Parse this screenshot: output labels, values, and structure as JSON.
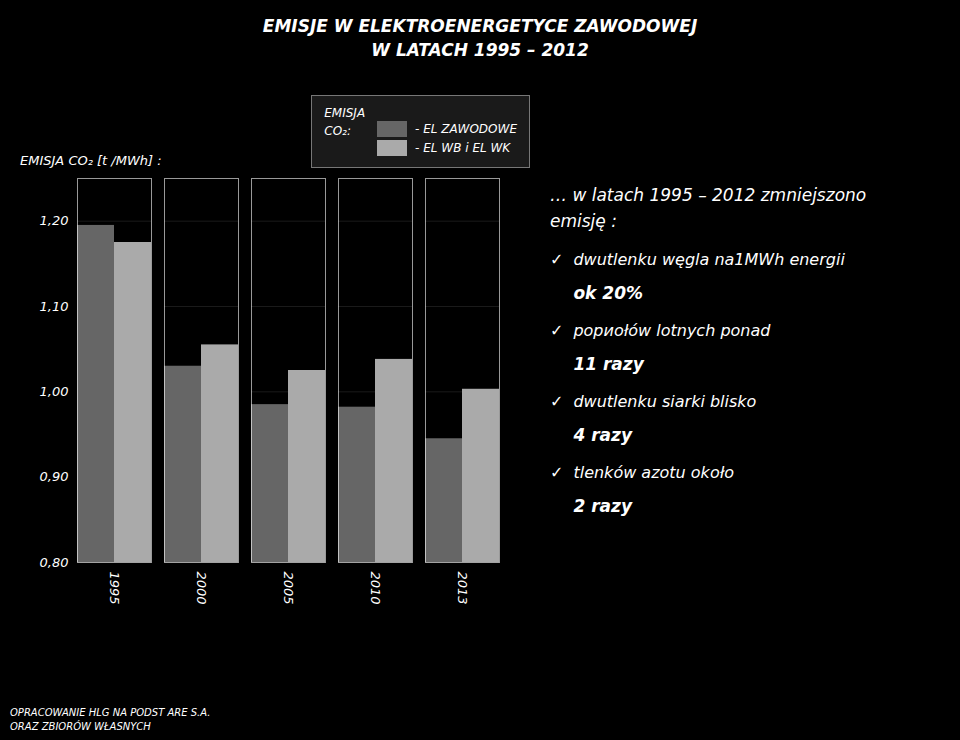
{
  "chart_data": {
    "type": "bar",
    "title": "EMISJE W ELEKTROENERGETYCE ZAWODOWEJ",
    "subtitle": "W LATACH 1995 – 2012",
    "y_label": "EMISJA CO₂  [t /MWh] :",
    "legend_title": "EMISJA\nCO₂:",
    "categories": [
      "1995",
      "2000",
      "2005",
      "2010",
      "2013"
    ],
    "series": [
      {
        "name": "- EL ZAWODOWE",
        "color": "#666666",
        "values": [
          1.195,
          1.03,
          0.985,
          0.982,
          0.945
        ]
      },
      {
        "name": "- EL WB i EL WK",
        "color": "#aaaaaa",
        "values": [
          1.175,
          1.055,
          1.025,
          1.038,
          1.003
        ]
      }
    ],
    "ylim": [
      0.8,
      1.25
    ],
    "yticks": [
      {
        "value": 0.8,
        "label": "0,80"
      },
      {
        "value": 0.9,
        "label": "0,90"
      },
      {
        "value": 1.0,
        "label": "1,00"
      },
      {
        "value": 1.1,
        "label": "1,10"
      },
      {
        "value": 1.2,
        "label": "1,20"
      }
    ],
    "grid": true,
    "annotation": "… w latach 1995 – 2012 zmniejszono\nemisję :",
    "bullets": [
      {
        "check": "✓",
        "text": "dwutlenku węgla na1MWh energii",
        "highlight": "ok 20%"
      },
      {
        "check": "✓",
        "text": "popиołów lotnych  ponad",
        "highlight": "11 razy"
      },
      {
        "check": "✓",
        "text": "dwutlenku siarki blisko",
        "highlight": "4 razy"
      },
      {
        "check": "✓",
        "text": "tlenków azotu około",
        "highlight": "2 razy"
      }
    ],
    "footer": [
      "OPRACOWANIE HLG NA PODST ARE S.A.",
      "ORAZ ZBIORÓW WŁASNYCH"
    ]
  }
}
